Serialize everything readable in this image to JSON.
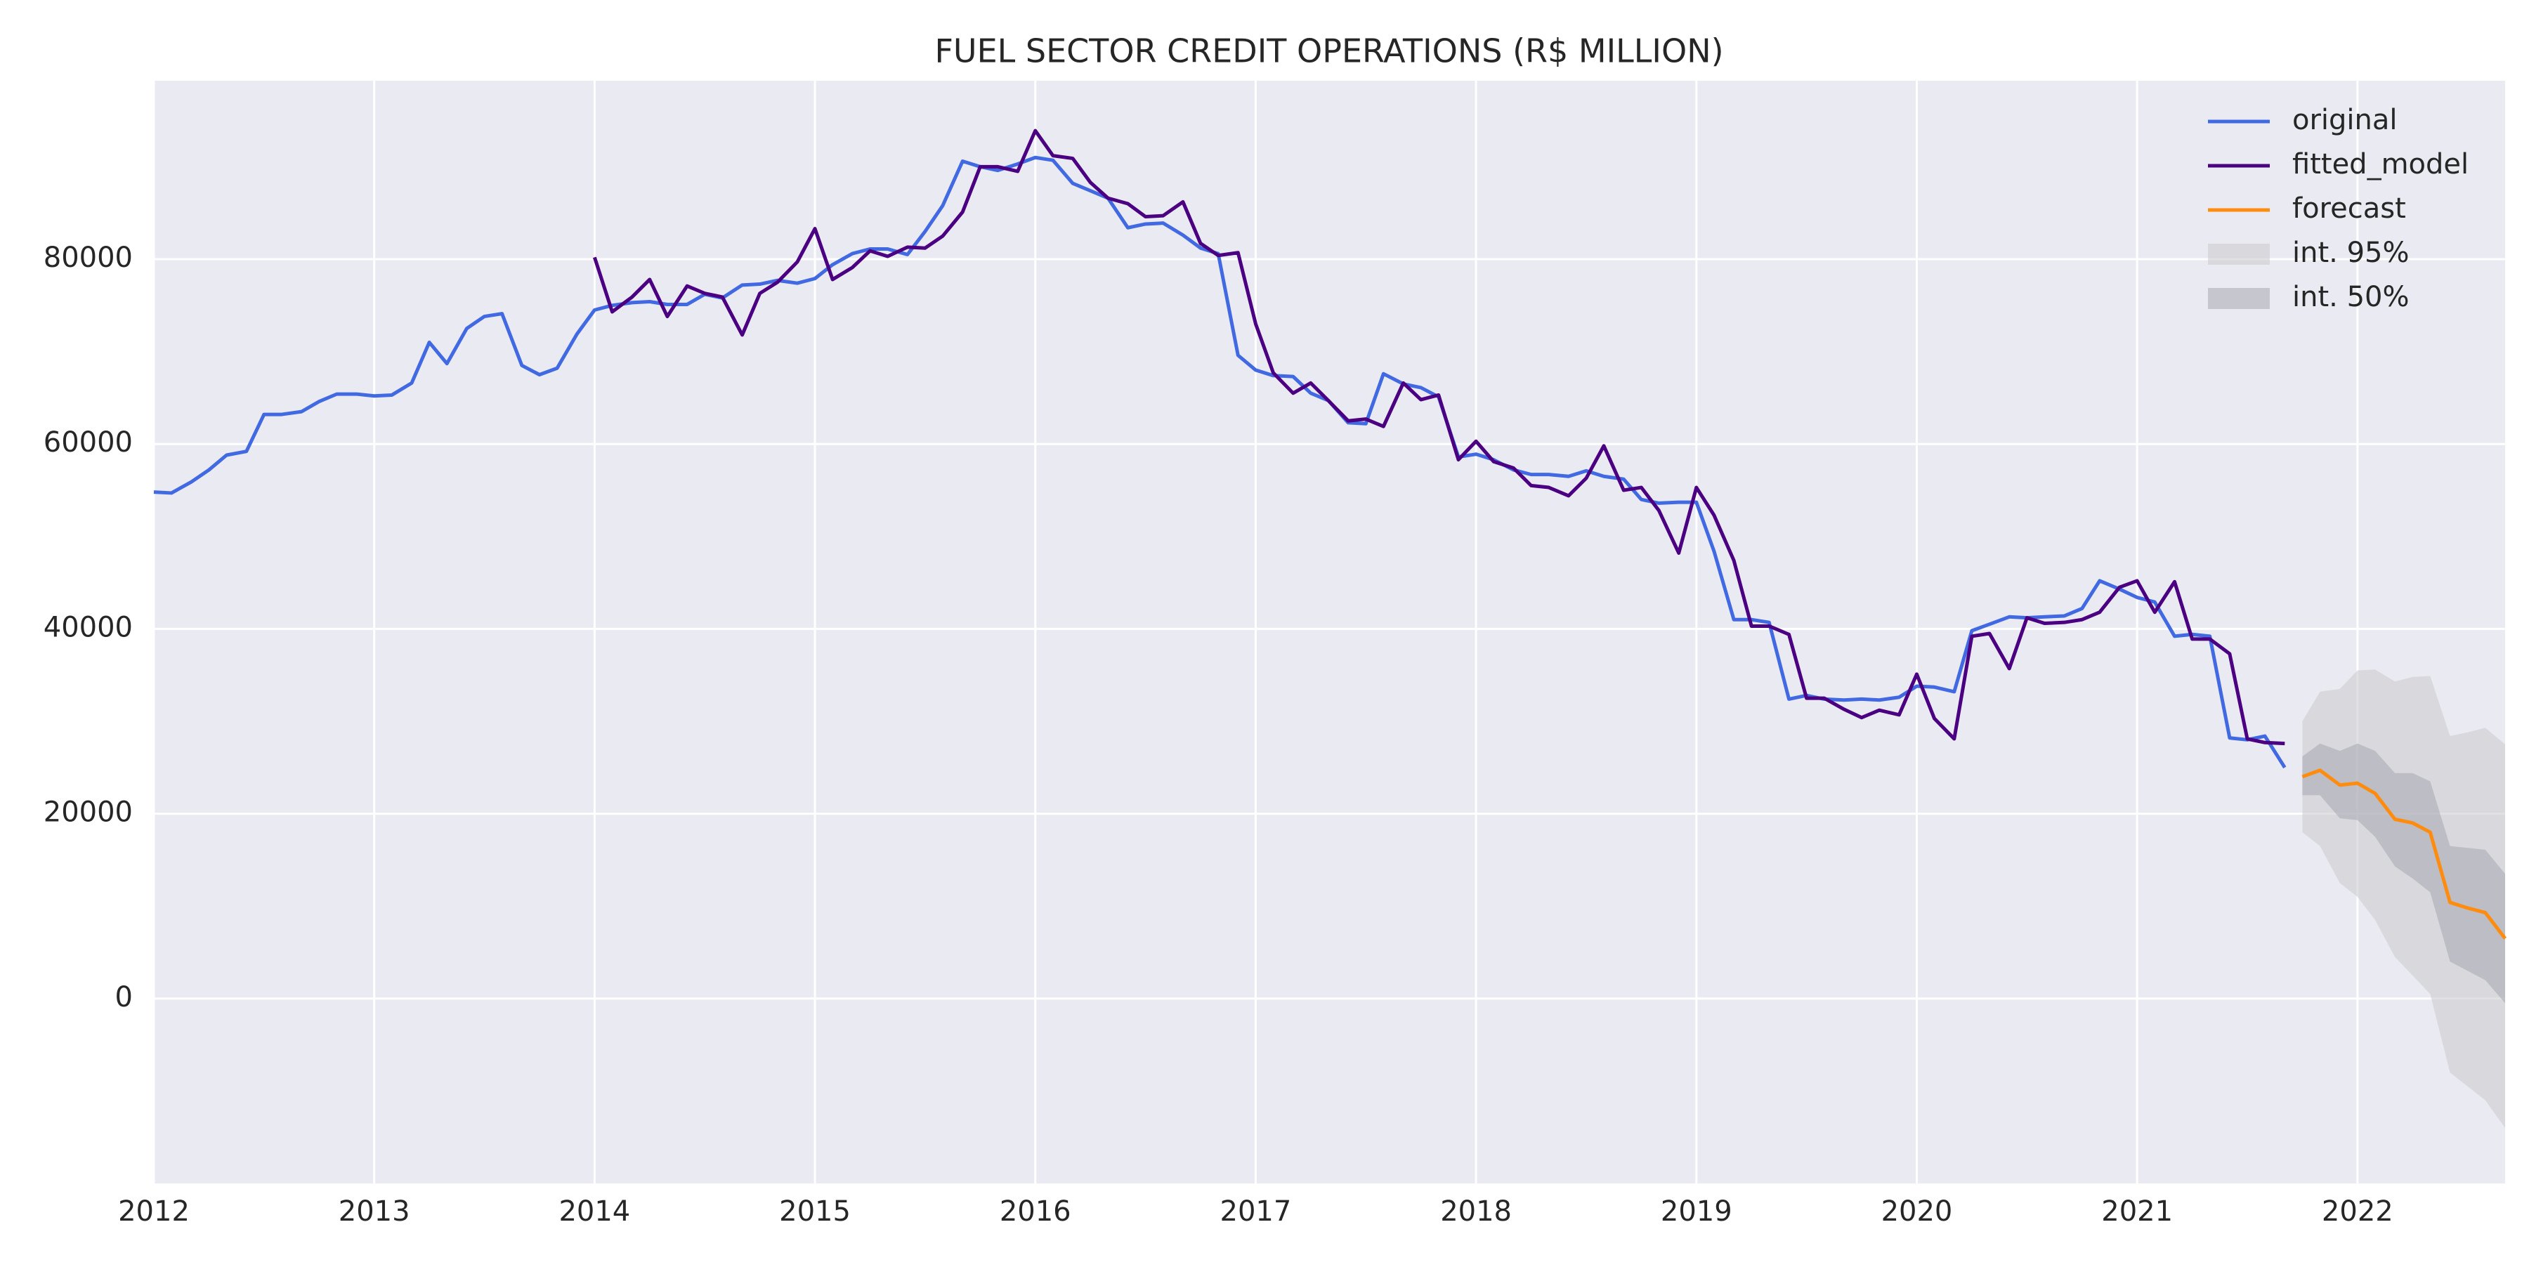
{
  "chart_data": {
    "type": "line",
    "title": "FUEL SECTOR CREDIT OPERATIONS (R$ MILLION)",
    "xlim": [
      2012,
      2022.67
    ],
    "xticks": [
      2012,
      2013,
      2014,
      2015,
      2016,
      2017,
      2018,
      2019,
      2020,
      2021,
      2022
    ],
    "ylim": [
      -20000,
      99300
    ],
    "yticks": [
      0,
      20000,
      40000,
      60000,
      80000
    ],
    "grid": true,
    "legend": "upper right",
    "series": [
      {
        "name": "original",
        "color": "#4169e1",
        "x": [
          2012.0,
          2012.08,
          2012.17,
          2012.25,
          2012.33,
          2012.42,
          2012.5,
          2012.58,
          2012.67,
          2012.75,
          2012.83,
          2012.92,
          2013.0,
          2013.08,
          2013.17,
          2013.25,
          2013.33,
          2013.42,
          2013.5,
          2013.58,
          2013.67,
          2013.75,
          2013.83,
          2013.92,
          2014.0,
          2014.08,
          2014.17,
          2014.25,
          2014.33,
          2014.42,
          2014.5,
          2014.58,
          2014.67,
          2014.75,
          2014.83,
          2014.92,
          2015.0,
          2015.08,
          2015.17,
          2015.25,
          2015.33,
          2015.42,
          2015.5,
          2015.58,
          2015.67,
          2015.75,
          2015.83,
          2015.92,
          2016.0,
          2016.08,
          2016.17,
          2016.25,
          2016.33,
          2016.42,
          2016.5,
          2016.58,
          2016.67,
          2016.75,
          2016.83,
          2016.92,
          2017.0,
          2017.08,
          2017.17,
          2017.25,
          2017.33,
          2017.42,
          2017.5,
          2017.58,
          2017.67,
          2017.75,
          2017.83,
          2017.92,
          2018.0,
          2018.08,
          2018.17,
          2018.25,
          2018.33,
          2018.42,
          2018.5,
          2018.58,
          2018.67,
          2018.75,
          2018.83,
          2018.92,
          2019.0,
          2019.08,
          2019.17,
          2019.25,
          2019.33,
          2019.42,
          2019.5,
          2019.58,
          2019.67,
          2019.75,
          2019.83,
          2019.92,
          2020.0,
          2020.08,
          2020.17,
          2020.25,
          2020.33,
          2020.42,
          2020.5,
          2020.58,
          2020.67,
          2020.75,
          2020.83,
          2020.92,
          2021.0,
          2021.08,
          2021.17,
          2021.25,
          2021.33,
          2021.42,
          2021.5,
          2021.58,
          2021.67
        ],
        "values": [
          54800,
          54700,
          55900,
          57200,
          58800,
          59200,
          63200,
          63200,
          63500,
          64600,
          65400,
          65400,
          65200,
          65300,
          66600,
          71000,
          68700,
          72500,
          73800,
          74100,
          68500,
          67500,
          68200,
          71900,
          74500,
          75000,
          75300,
          75400,
          75100,
          75100,
          76200,
          75800,
          77200,
          77300,
          77700,
          77400,
          77900,
          79400,
          80600,
          81100,
          81100,
          80500,
          83000,
          85800,
          90600,
          90000,
          89600,
          90300,
          91000,
          90700,
          88200,
          87400,
          86600,
          83400,
          83800,
          83900,
          82600,
          81200,
          80600,
          69600,
          68000,
          67400,
          67300,
          65500,
          64700,
          62300,
          62200,
          67600,
          66500,
          66100,
          65100,
          58600,
          58900,
          58300,
          57200,
          56700,
          56700,
          56500,
          57100,
          56500,
          56200,
          54000,
          53600,
          53700,
          53700,
          48400,
          41000,
          41000,
          40700,
          32400,
          32800,
          32400,
          32300,
          32400,
          32300,
          32600,
          33800,
          33700,
          33200,
          39800,
          40500,
          41300,
          41200,
          41300,
          41400,
          42200,
          45200,
          44300,
          43400,
          42900,
          39200,
          39400,
          39200,
          28200,
          28000,
          28400,
          25000
        ]
      },
      {
        "name": "fitted_model",
        "color": "#4b0082",
        "x": [
          2014.0,
          2014.08,
          2014.17,
          2014.25,
          2014.33,
          2014.42,
          2014.5,
          2014.58,
          2014.67,
          2014.75,
          2014.83,
          2014.92,
          2015.0,
          2015.08,
          2015.17,
          2015.25,
          2015.33,
          2015.42,
          2015.5,
          2015.58,
          2015.67,
          2015.75,
          2015.83,
          2015.92,
          2016.0,
          2016.08,
          2016.17,
          2016.25,
          2016.33,
          2016.42,
          2016.5,
          2016.58,
          2016.67,
          2016.75,
          2016.83,
          2016.92,
          2017.0,
          2017.08,
          2017.17,
          2017.25,
          2017.33,
          2017.42,
          2017.5,
          2017.58,
          2017.67,
          2017.75,
          2017.83,
          2017.92,
          2018.0,
          2018.08,
          2018.17,
          2018.25,
          2018.33,
          2018.42,
          2018.5,
          2018.58,
          2018.67,
          2018.75,
          2018.83,
          2018.92,
          2019.0,
          2019.08,
          2019.17,
          2019.25,
          2019.33,
          2019.42,
          2019.5,
          2019.58,
          2019.67,
          2019.75,
          2019.83,
          2019.92,
          2020.0,
          2020.08,
          2020.17,
          2020.25,
          2020.33,
          2020.42,
          2020.5,
          2020.58,
          2020.67,
          2020.75,
          2020.83,
          2020.92,
          2021.0,
          2021.08,
          2021.17,
          2021.25,
          2021.33,
          2021.42,
          2021.5,
          2021.58,
          2021.67
        ],
        "values": [
          80200,
          74300,
          75900,
          77800,
          73800,
          77100,
          76300,
          75900,
          71800,
          76300,
          77500,
          79700,
          83300,
          77800,
          79100,
          80900,
          80300,
          81300,
          81200,
          82500,
          85100,
          90000,
          90000,
          89500,
          93900,
          91200,
          90900,
          88300,
          86600,
          86000,
          84600,
          84700,
          86200,
          81700,
          80400,
          80700,
          73000,
          67700,
          65500,
          66600,
          64700,
          62500,
          62700,
          61900,
          66600,
          64800,
          65300,
          58300,
          60300,
          58100,
          57400,
          55500,
          55300,
          54400,
          56300,
          59800,
          55000,
          55300,
          52800,
          48200,
          55300,
          52300,
          47400,
          40300,
          40300,
          39400,
          32500,
          32500,
          31300,
          30400,
          31200,
          30700,
          35100,
          30300,
          28100,
          39200,
          39500,
          35700,
          41200,
          40600,
          40700,
          41000,
          41800,
          44500,
          45200,
          41800,
          45100,
          38900,
          38900,
          37300,
          28100,
          27700,
          27600
        ]
      },
      {
        "name": "forecast",
        "color": "#ff8c0e",
        "x": [
          2021.75,
          2021.83,
          2021.92,
          2022.0,
          2022.08,
          2022.17,
          2022.25,
          2022.33,
          2022.42,
          2022.5,
          2022.58,
          2022.67
        ],
        "values": [
          24000,
          24700,
          23100,
          23300,
          22200,
          19400,
          19000,
          18000,
          10400,
          9800,
          9300,
          6500
        ]
      }
    ],
    "bands": [
      {
        "name": "int. 95%",
        "color": "#c8c8cc",
        "x": [
          2021.75,
          2021.83,
          2021.92,
          2022.0,
          2022.08,
          2022.17,
          2022.25,
          2022.33,
          2022.42,
          2022.5,
          2022.58,
          2022.67
        ],
        "lower": [
          18000,
          16500,
          12500,
          11000,
          8500,
          4500,
          2500,
          500,
          -8000,
          -9500,
          -11000,
          -14000
        ],
        "upper": [
          30000,
          33200,
          33500,
          35500,
          35600,
          34300,
          34800,
          34900,
          28400,
          28800,
          29300,
          27500
        ]
      },
      {
        "name": "int. 50%",
        "color": "#a8a8b0",
        "x": [
          2021.75,
          2021.83,
          2021.92,
          2022.0,
          2022.08,
          2022.17,
          2022.25,
          2022.33,
          2022.42,
          2022.5,
          2022.58,
          2022.67
        ],
        "lower": [
          22000,
          22000,
          19500,
          19300,
          17500,
          14300,
          13000,
          11500,
          4000,
          3000,
          2000,
          -500
        ],
        "upper": [
          26200,
          27600,
          26800,
          27600,
          26800,
          24400,
          24400,
          23500,
          16500,
          16300,
          16100,
          13500
        ]
      }
    ]
  }
}
